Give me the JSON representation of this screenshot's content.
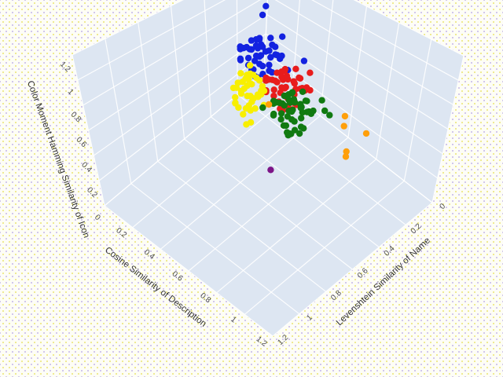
{
  "figure": {
    "title": "",
    "background_dot_colors": [
      "#e8e05c",
      "#bcaae6"
    ],
    "paper_color": "#fdfdf6"
  },
  "chart_data": {
    "type": "scatter",
    "projection": "3d",
    "title": "",
    "grid": true,
    "legend": false,
    "marker_size": 8.4,
    "pane_color": "#dde6f2",
    "grid_color": "#ffffff",
    "axes": {
      "x": {
        "label": "Cosine Similarity of Description",
        "tick_values": [
          0,
          0.2,
          0.4,
          0.6,
          0.8,
          1,
          1.2
        ],
        "tick_labels": [
          "0",
          "0.2",
          "0.4",
          "0.6",
          "0.8",
          "1",
          "1.2"
        ],
        "range": [
          0,
          1.2
        ]
      },
      "y": {
        "label": "Levenshtein Similarity of Name",
        "tick_values": [
          0,
          0.2,
          0.4,
          0.6,
          0.8,
          1,
          1.2
        ],
        "tick_labels": [
          "0",
          "0.2",
          "0.4",
          "0.6",
          "0.8",
          "1",
          "1.2"
        ],
        "range": [
          0,
          1.2
        ]
      },
      "z": {
        "label": "Color Moment Hamming Similarity of Icon",
        "tick_values": [
          0,
          0.2,
          0.4,
          0.6,
          0.8,
          1,
          1.2
        ],
        "tick_labels": [
          "0",
          "0.2",
          "0.4",
          "0.6",
          "0.8",
          "1",
          "1.2"
        ],
        "range": [
          0,
          1.2
        ]
      }
    },
    "series": [
      {
        "name": "blue",
        "color": "#1322e0",
        "points": [
          [
            0.44,
            0.5,
            1.0
          ],
          [
            0.4,
            0.47,
            1.02
          ],
          [
            0.47,
            0.53,
            0.98
          ],
          [
            0.38,
            0.52,
            1.05
          ],
          [
            0.5,
            0.46,
            1.03
          ],
          [
            0.42,
            0.55,
            0.95
          ],
          [
            0.46,
            0.44,
            1.07
          ],
          [
            0.36,
            0.48,
            0.99
          ],
          [
            0.52,
            0.52,
            1.0
          ],
          [
            0.41,
            0.43,
            0.97
          ],
          [
            0.48,
            0.57,
            1.04
          ],
          [
            0.39,
            0.5,
            1.1
          ],
          [
            0.45,
            0.49,
            0.92
          ],
          [
            0.43,
            0.54,
            1.08
          ],
          [
            0.49,
            0.42,
            0.96
          ],
          [
            0.37,
            0.45,
            1.06
          ],
          [
            0.51,
            0.55,
            0.94
          ],
          [
            0.4,
            0.58,
            1.01
          ],
          [
            0.46,
            0.51,
            1.12
          ],
          [
            0.35,
            0.53,
            1.02
          ],
          [
            0.53,
            0.48,
            1.06
          ],
          [
            0.42,
            0.46,
            1.04
          ],
          [
            0.47,
            0.56,
            0.9
          ],
          [
            0.44,
            0.4,
            1.01
          ],
          [
            0.38,
            0.56,
            0.97
          ],
          [
            0.5,
            0.5,
            1.09
          ],
          [
            0.41,
            0.52,
            0.88
          ],
          [
            0.48,
            0.47,
            1.0
          ],
          [
            0.36,
            0.42,
            1.03
          ],
          [
            0.54,
            0.54,
            0.98
          ],
          [
            0.43,
            0.49,
            1.14
          ],
          [
            0.45,
            0.58,
            1.05
          ],
          [
            0.39,
            0.44,
            0.93
          ],
          [
            0.52,
            0.44,
            1.02
          ],
          [
            0.34,
            0.5,
            1.0
          ],
          [
            0.46,
            0.53,
            0.86
          ],
          [
            0.49,
            0.59,
            0.99
          ],
          [
            0.42,
            0.41,
            1.08
          ],
          [
            0.37,
            0.55,
            1.07
          ],
          [
            0.51,
            0.49,
            0.91
          ],
          [
            0.44,
            0.52,
            1.02
          ],
          [
            0.4,
            0.48,
            1.05
          ],
          [
            0.28,
            0.3,
            1.18
          ],
          [
            0.29,
            0.33,
            1.13
          ],
          [
            0.52,
            0.44,
            1.18
          ],
          [
            0.56,
            0.44,
            0.93
          ],
          [
            0.62,
            0.4,
            1.02
          ]
        ]
      },
      {
        "name": "red",
        "color": "#e81c1c",
        "points": [
          [
            0.62,
            0.52,
            0.88
          ],
          [
            0.58,
            0.49,
            0.9
          ],
          [
            0.65,
            0.55,
            0.86
          ],
          [
            0.56,
            0.54,
            0.92
          ],
          [
            0.68,
            0.48,
            0.89
          ],
          [
            0.6,
            0.57,
            0.84
          ],
          [
            0.64,
            0.45,
            0.93
          ],
          [
            0.54,
            0.5,
            0.87
          ],
          [
            0.7,
            0.54,
            0.9
          ],
          [
            0.59,
            0.43,
            0.85
          ],
          [
            0.66,
            0.59,
            0.92
          ],
          [
            0.57,
            0.52,
            0.97
          ],
          [
            0.63,
            0.51,
            0.8
          ],
          [
            0.61,
            0.56,
            0.95
          ],
          [
            0.67,
            0.44,
            0.84
          ],
          [
            0.55,
            0.47,
            0.93
          ],
          [
            0.69,
            0.57,
            0.82
          ],
          [
            0.58,
            0.6,
            0.89
          ],
          [
            0.64,
            0.53,
            1.0
          ],
          [
            0.53,
            0.55,
            0.9
          ],
          [
            0.71,
            0.5,
            0.93
          ],
          [
            0.6,
            0.48,
            0.91
          ],
          [
            0.65,
            0.58,
            0.78
          ],
          [
            0.62,
            0.42,
            0.89
          ],
          [
            0.56,
            0.58,
            0.85
          ],
          [
            0.68,
            0.52,
            0.96
          ],
          [
            0.59,
            0.54,
            0.76
          ],
          [
            0.66,
            0.49,
            0.88
          ],
          [
            0.54,
            0.44,
            0.91
          ],
          [
            0.72,
            0.56,
            0.86
          ],
          [
            0.61,
            0.51,
            1.02
          ],
          [
            0.63,
            0.6,
            0.93
          ],
          [
            0.57,
            0.46,
            0.81
          ],
          [
            0.7,
            0.46,
            0.9
          ],
          [
            0.52,
            0.52,
            0.88
          ],
          [
            0.64,
            0.55,
            0.74
          ],
          [
            0.67,
            0.61,
            0.87
          ],
          [
            0.6,
            0.43,
            0.96
          ],
          [
            0.55,
            0.57,
            0.95
          ],
          [
            0.69,
            0.51,
            0.79
          ],
          [
            0.62,
            0.54,
            0.9
          ],
          [
            0.58,
            0.5,
            0.93
          ],
          [
            0.74,
            0.48,
            0.92
          ],
          [
            0.48,
            0.54,
            0.86
          ],
          [
            0.66,
            0.4,
            0.95
          ],
          [
            0.73,
            0.58,
            0.83
          ]
        ]
      },
      {
        "name": "yellow",
        "color": "#f8ef00",
        "points": [
          [
            0.42,
            0.56,
            0.7
          ],
          [
            0.39,
            0.53,
            0.74
          ],
          [
            0.45,
            0.58,
            0.66
          ],
          [
            0.37,
            0.57,
            0.78
          ],
          [
            0.47,
            0.52,
            0.72
          ],
          [
            0.4,
            0.6,
            0.62
          ],
          [
            0.44,
            0.5,
            0.8
          ],
          [
            0.36,
            0.54,
            0.68
          ],
          [
            0.48,
            0.58,
            0.74
          ],
          [
            0.41,
            0.48,
            0.64
          ],
          [
            0.45,
            0.61,
            0.82
          ],
          [
            0.38,
            0.56,
            0.86
          ],
          [
            0.43,
            0.55,
            0.58
          ],
          [
            0.42,
            0.59,
            0.84
          ],
          [
            0.46,
            0.49,
            0.6
          ],
          [
            0.37,
            0.51,
            0.8
          ],
          [
            0.48,
            0.6,
            0.56
          ],
          [
            0.4,
            0.62,
            0.72
          ],
          [
            0.44,
            0.56,
            0.9
          ],
          [
            0.35,
            0.58,
            0.73
          ],
          [
            0.49,
            0.54,
            0.78
          ],
          [
            0.41,
            0.52,
            0.76
          ],
          [
            0.45,
            0.6,
            0.52
          ],
          [
            0.43,
            0.47,
            0.72
          ],
          [
            0.38,
            0.6,
            0.64
          ],
          [
            0.47,
            0.55,
            0.88
          ],
          [
            0.4,
            0.57,
            0.54
          ],
          [
            0.46,
            0.53,
            0.7
          ],
          [
            0.36,
            0.49,
            0.74
          ],
          [
            0.5,
            0.59,
            0.68
          ],
          [
            0.42,
            0.54,
            0.94
          ],
          [
            0.44,
            0.62,
            0.78
          ],
          [
            0.39,
            0.5,
            0.58
          ],
          [
            0.48,
            0.51,
            0.75
          ],
          [
            0.34,
            0.55,
            0.7
          ],
          [
            0.43,
            0.58,
            0.62
          ],
          [
            0.41,
            0.63,
            0.69
          ],
          [
            0.37,
            0.47,
            0.77
          ],
          [
            0.45,
            0.57,
            0.73
          ],
          [
            0.4,
            0.55,
            0.82
          ]
        ]
      },
      {
        "name": "green",
        "color": "#117a11",
        "points": [
          [
            0.65,
            0.5,
            0.7
          ],
          [
            0.61,
            0.47,
            0.72
          ],
          [
            0.68,
            0.53,
            0.68
          ],
          [
            0.59,
            0.52,
            0.74
          ],
          [
            0.71,
            0.46,
            0.71
          ],
          [
            0.63,
            0.55,
            0.66
          ],
          [
            0.67,
            0.43,
            0.75
          ],
          [
            0.57,
            0.48,
            0.69
          ],
          [
            0.73,
            0.52,
            0.72
          ],
          [
            0.62,
            0.41,
            0.67
          ],
          [
            0.69,
            0.57,
            0.74
          ],
          [
            0.6,
            0.5,
            0.79
          ],
          [
            0.66,
            0.49,
            0.62
          ],
          [
            0.64,
            0.54,
            0.77
          ],
          [
            0.7,
            0.42,
            0.66
          ],
          [
            0.58,
            0.45,
            0.75
          ],
          [
            0.72,
            0.55,
            0.64
          ],
          [
            0.61,
            0.58,
            0.71
          ],
          [
            0.67,
            0.51,
            0.82
          ],
          [
            0.56,
            0.53,
            0.72
          ],
          [
            0.74,
            0.48,
            0.75
          ],
          [
            0.63,
            0.46,
            0.73
          ],
          [
            0.68,
            0.56,
            0.6
          ],
          [
            0.65,
            0.4,
            0.71
          ],
          [
            0.59,
            0.56,
            0.67
          ],
          [
            0.71,
            0.5,
            0.78
          ],
          [
            0.62,
            0.52,
            0.58
          ],
          [
            0.69,
            0.47,
            0.7
          ],
          [
            0.57,
            0.42,
            0.73
          ],
          [
            0.75,
            0.54,
            0.68
          ],
          [
            0.64,
            0.49,
            0.84
          ],
          [
            0.66,
            0.58,
            0.75
          ],
          [
            0.6,
            0.44,
            0.63
          ],
          [
            0.73,
            0.44,
            0.72
          ],
          [
            0.55,
            0.5,
            0.7
          ],
          [
            0.67,
            0.53,
            0.56
          ],
          [
            0.7,
            0.59,
            0.69
          ],
          [
            0.63,
            0.41,
            0.78
          ],
          [
            0.58,
            0.55,
            0.77
          ],
          [
            0.72,
            0.49,
            0.61
          ],
          [
            0.65,
            0.52,
            0.72
          ],
          [
            0.61,
            0.48,
            0.75
          ],
          [
            0.82,
            0.46,
            0.8
          ],
          [
            0.86,
            0.47,
            0.8
          ],
          [
            0.78,
            0.44,
            0.84
          ],
          [
            0.65,
            0.5,
            0.52
          ],
          [
            0.66,
            0.53,
            0.54
          ],
          [
            0.76,
            0.56,
            0.65
          ],
          [
            0.52,
            0.56,
            0.68
          ],
          [
            0.66,
            0.45,
            0.7
          ]
        ]
      },
      {
        "name": "orange",
        "color": "#ff9f0a",
        "points": [
          [
            0.85,
            0.35,
            0.7
          ],
          [
            0.85,
            0.35,
            0.62
          ],
          [
            0.95,
            0.3,
            0.6
          ],
          [
            0.88,
            0.35,
            0.44
          ],
          [
            0.88,
            0.35,
            0.4
          ],
          [
            0.55,
            0.55,
            0.72
          ]
        ]
      },
      {
        "name": "purple",
        "color": "#7c1487",
        "points": [
          [
            0.52,
            0.5,
            0.12
          ]
        ]
      }
    ]
  }
}
